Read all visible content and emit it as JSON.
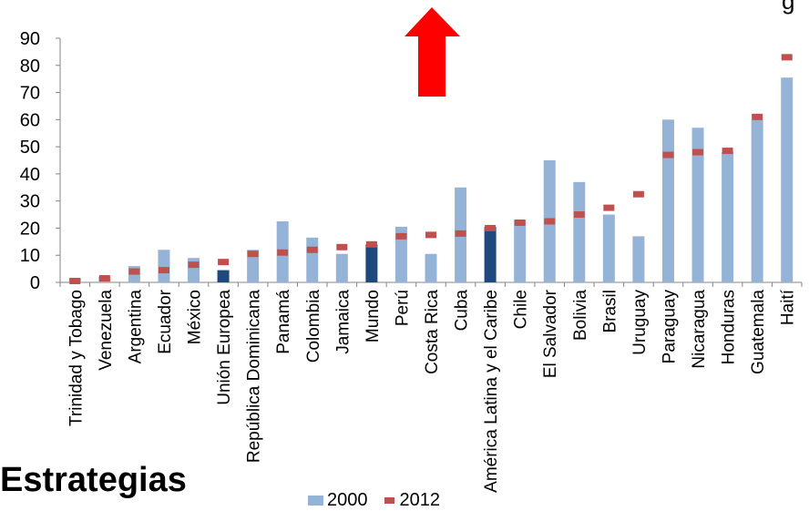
{
  "chart_data": {
    "type": "bar",
    "categories": [
      "Trinidad y Tobago",
      "Venezuela",
      "Argentina",
      "Ecuador",
      "México",
      "Unión Europea",
      "República Dominicana",
      "Panamá",
      "Colombia",
      "Jamaica",
      "Mundo",
      "Perú",
      "Costa Rica",
      "Cuba",
      "América Latina y el Caribe",
      "Chile",
      "El Salvador",
      "Bolivia",
      "Brasil",
      "Uruguay",
      "Paraguay",
      "Nicaragua",
      "Honduras",
      "Guatemala",
      "Haití"
    ],
    "series": [
      {
        "name": "2000",
        "type": "bar",
        "color": "#95b3d7",
        "highlight_color": "#1f497d",
        "values": [
          1.5,
          2,
          6,
          12,
          9,
          4.5,
          12,
          22.5,
          16.5,
          10.5,
          14,
          20.5,
          10.5,
          35,
          20.5,
          23,
          45,
          37,
          25,
          17,
          60,
          57,
          48,
          60,
          75.5
        ]
      },
      {
        "name": "2012",
        "type": "marker",
        "color": "#c0504d",
        "values": [
          0.5,
          1.5,
          4,
          4.5,
          6.5,
          7.5,
          10.5,
          11,
          12,
          13,
          14,
          17,
          17.5,
          18,
          20,
          22,
          22.5,
          25,
          27.5,
          32.5,
          47,
          48,
          48.5,
          61,
          83
        ]
      }
    ],
    "highlighted_categories": [
      "Unión Europea",
      "Mundo",
      "América Latina y el Caribe"
    ],
    "ylim": [
      0,
      90
    ],
    "yticks": [
      0,
      10,
      20,
      30,
      40,
      50,
      60,
      70,
      80,
      90
    ],
    "legend_position": "bottom",
    "grid": false,
    "annotation": {
      "shape": "up-arrow",
      "color": "#ff0000"
    }
  },
  "texts": {
    "heading": "Estrategias",
    "top_fragment": "g"
  }
}
